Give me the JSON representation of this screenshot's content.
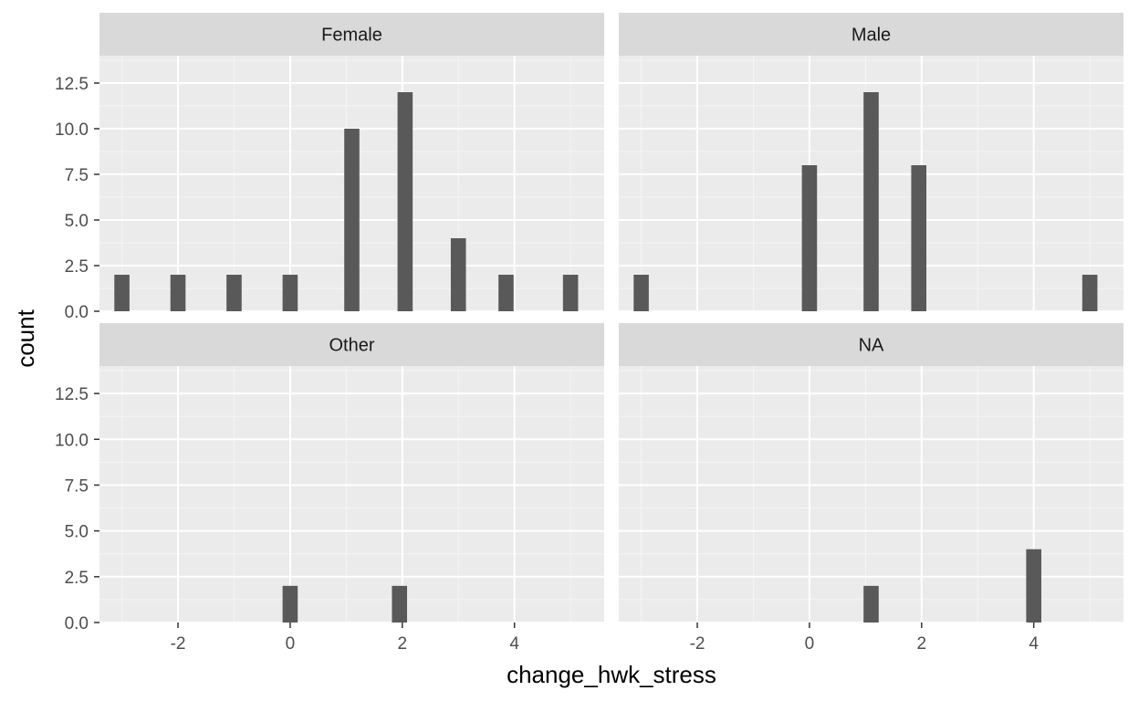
{
  "chart_data": {
    "type": "bar",
    "xlabel": "change_hwk_stress",
    "ylabel": "count",
    "xlim": [
      -3.4,
      5.6
    ],
    "ylim": [
      0,
      14
    ],
    "x_ticks": [
      -2,
      0,
      2,
      4
    ],
    "x_tick_labels": [
      "-2",
      "0",
      "2",
      "4"
    ],
    "y_ticks": [
      0,
      2.5,
      5,
      7.5,
      10,
      12.5
    ],
    "y_tick_labels": [
      "0.0",
      "2.5",
      "5.0",
      "7.5",
      "10.0",
      "12.5"
    ],
    "bin_width": 0.27,
    "grid": true,
    "panels": [
      {
        "name": "Female",
        "x": [
          -3,
          -2,
          -1,
          0,
          1.1,
          2.05,
          3,
          3.85,
          5
        ],
        "values": [
          2,
          2,
          2,
          2,
          10,
          12,
          4,
          2,
          2
        ]
      },
      {
        "name": "Male",
        "x": [
          -3,
          0,
          1.1,
          1.95,
          5
        ],
        "values": [
          2,
          8,
          12,
          8,
          2
        ]
      },
      {
        "name": "Other",
        "x": [
          0,
          1.95
        ],
        "values": [
          2,
          2
        ]
      },
      {
        "name": "NA",
        "x": [
          1.1,
          4
        ],
        "values": [
          2,
          4
        ]
      }
    ]
  },
  "colors": {
    "panel_bg": "#ebebeb",
    "strip_bg": "#d9d9d9",
    "grid_major": "#ffffff",
    "grid_minor": "#f5f5f5",
    "bar_fill": "#595959",
    "tick_color": "#333333"
  }
}
